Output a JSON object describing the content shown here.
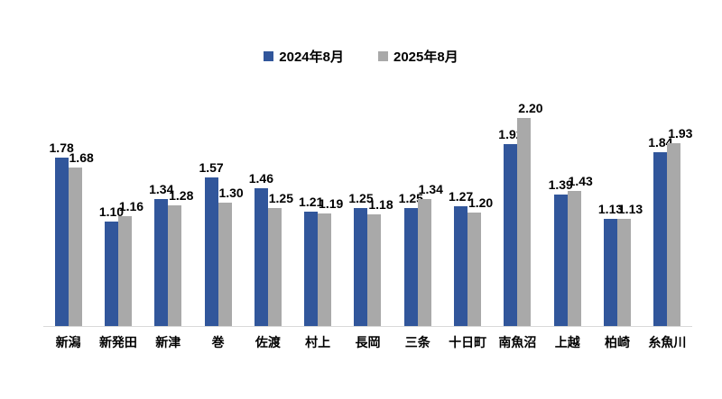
{
  "legend": {
    "items": [
      {
        "label": "2024年8月",
        "color": "#31569B"
      },
      {
        "label": "2025年8月",
        "color": "#A9A9A9"
      }
    ]
  },
  "chart_data": {
    "type": "bar",
    "title": "",
    "xlabel": "",
    "ylabel": "",
    "categories": [
      "新潟",
      "新発田",
      "新津",
      "巻",
      "佐渡",
      "村上",
      "長岡",
      "三条",
      "十日町",
      "南魚沼",
      "上越",
      "柏崎",
      "糸魚川"
    ],
    "series": [
      {
        "name": "2024年8月",
        "color": "#31569B",
        "values": [
          1.78,
          1.1,
          1.34,
          1.57,
          1.46,
          1.21,
          1.25,
          1.25,
          1.27,
          1.92,
          1.39,
          1.13,
          1.84
        ]
      },
      {
        "name": "2025年8月",
        "color": "#A9A9A9",
        "values": [
          1.68,
          1.16,
          1.28,
          1.3,
          1.25,
          1.19,
          1.18,
          1.34,
          1.2,
          2.2,
          1.43,
          1.13,
          1.93
        ]
      }
    ],
    "value_decimals": 2,
    "data_labels": true,
    "grid": false,
    "y_axis_visible": false,
    "legend_position": "top",
    "axis_line_color": "#D9D9D9"
  }
}
